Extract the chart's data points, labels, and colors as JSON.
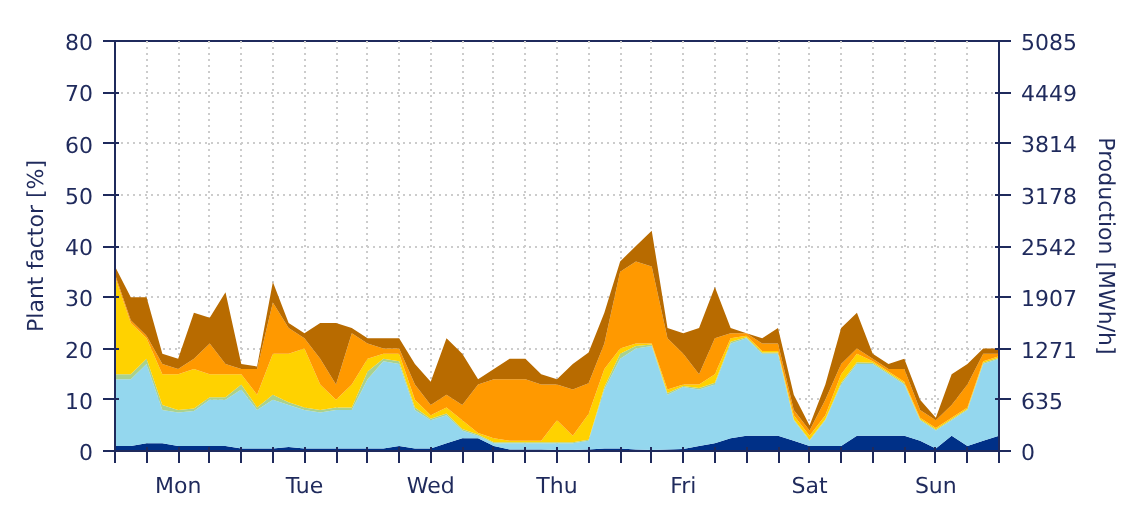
{
  "chart_data": {
    "type": "area",
    "stacked": true,
    "ylabel": "Plant factor [%]",
    "y2label": "Production [MWh/h]",
    "categories": [
      null,
      null,
      null,
      null,
      "Mon",
      null,
      null,
      null,
      null,
      null,
      null,
      null,
      "Tue",
      null,
      null,
      null,
      null,
      null,
      null,
      null,
      "Wed",
      null,
      null,
      null,
      null,
      null,
      null,
      null,
      "Thu",
      null,
      null,
      null,
      null,
      null,
      null,
      null,
      "Fri",
      null,
      null,
      null,
      null,
      null,
      null,
      null,
      "Sat",
      null,
      null,
      null,
      null,
      null,
      null,
      null,
      "Sun",
      null,
      null,
      null,
      null
    ],
    "ylim": [
      0,
      80
    ],
    "yticks": [
      0,
      10,
      20,
      30,
      40,
      50,
      60,
      70,
      80
    ],
    "y2lim": [
      0,
      5085
    ],
    "y2ticks": [
      0,
      635,
      1271,
      1907,
      2542,
      3178,
      3814,
      4449,
      5085
    ],
    "grid": true,
    "series": [
      {
        "color": "#003087",
        "values": [
          1,
          1,
          1.5,
          1.5,
          1,
          1,
          1,
          1,
          0.5,
          0.5,
          0.5,
          0.8,
          0.5,
          0.5,
          0.5,
          0.5,
          0.5,
          0.5,
          1,
          0.5,
          0.5,
          1.5,
          2.5,
          2.5,
          1,
          0.3,
          0.3,
          0.3,
          0.2,
          0.2,
          0.3,
          0.5,
          0.5,
          0.3,
          0.2,
          0.3,
          0.4,
          1,
          1.5,
          2.5,
          3,
          3,
          3,
          2,
          1,
          1,
          1,
          3,
          3,
          3,
          3,
          2,
          0.5,
          3,
          1,
          2,
          3
        ]
      },
      {
        "color": "#94d7ee",
        "values": [
          13,
          13,
          15.5,
          6.5,
          6.5,
          6.8,
          9,
          9,
          11.5,
          7.5,
          9.5,
          8.2,
          7.5,
          7,
          7.5,
          7.5,
          13.5,
          17,
          16,
          7.5,
          5.5,
          5.5,
          1.5,
          0.5,
          0.5,
          1.2,
          1.2,
          1.2,
          1.3,
          1.3,
          1.7,
          11.5,
          17.5,
          19.7,
          20.3,
          10.7,
          12.1,
          11,
          11.5,
          18.5,
          19,
          16,
          16,
          4,
          1,
          5,
          12,
          14,
          14,
          12,
          10,
          4,
          3.5,
          3,
          7,
          15,
          15
        ]
      },
      {
        "color": "#a9d18e",
        "values": [
          1,
          1,
          1,
          1,
          0.5,
          0.5,
          0.5,
          0.5,
          1,
          0.5,
          1,
          0.5,
          0.5,
          0.5,
          0.5,
          0.5,
          1.5,
          0.5,
          0.5,
          0.5,
          0.3,
          0.3,
          0.3,
          0.2,
          0.2,
          0.2,
          0.2,
          0.2,
          0.2,
          0.2,
          0.2,
          0.5,
          1,
          0.5,
          0.3,
          0.3,
          0.2,
          0.3,
          0.3,
          0.3,
          0.2,
          0.2,
          0.2,
          0.2,
          0.2,
          0.2,
          0.3,
          0.3,
          0.2,
          0.2,
          0.2,
          0.2,
          0.2,
          0.2,
          0.2,
          0.2,
          0.2
        ]
      },
      {
        "color": "#ffd200",
        "values": [
          19,
          10,
          4,
          6,
          7,
          7.7,
          4.5,
          4.5,
          2,
          2.5,
          8,
          9.5,
          11.5,
          5,
          1.5,
          4.5,
          2.5,
          1,
          1.5,
          1.5,
          0.7,
          1.2,
          1.7,
          0.3,
          0.8,
          0.3,
          0.3,
          0.3,
          4.3,
          1.3,
          5,
          3.5,
          1,
          0.5,
          0.2,
          0.7,
          0.3,
          0.7,
          1.7,
          0.7,
          0.3,
          0.3,
          0.3,
          0.8,
          0.8,
          0.8,
          1.7,
          1.7,
          0.3,
          0.3,
          0.3,
          0.3,
          0.3,
          0.3,
          0.3,
          0.3,
          0.3
        ]
      },
      {
        "color": "#ff9900",
        "values": [
          0.5,
          0.5,
          0.5,
          2,
          1,
          2,
          6,
          2,
          1,
          5,
          10,
          5,
          2,
          5,
          3,
          10,
          3,
          1,
          1,
          3,
          2,
          2.5,
          3,
          9.5,
          11.5,
          12,
          12,
          11,
          7,
          9,
          6,
          5,
          15,
          16,
          15,
          10,
          6,
          2,
          7,
          1,
          0.5,
          1.5,
          1.5,
          1,
          1,
          3,
          2,
          1,
          0.5,
          0.5,
          2.5,
          1.5,
          1.5,
          2.5,
          4.5,
          1.5,
          0.5
        ]
      },
      {
        "color": "#b86b00",
        "values": [
          1.5,
          4.5,
          7.5,
          2,
          2,
          9,
          5,
          14,
          1,
          0.5,
          4,
          1,
          1,
          7,
          12,
          1,
          1,
          2,
          2,
          4,
          4.5,
          11,
          10,
          1,
          2,
          4,
          4,
          2,
          1,
          5,
          6,
          6,
          2,
          3,
          7,
          2,
          4,
          9,
          10,
          1,
          0,
          1,
          3,
          3,
          1,
          3,
          7,
          7,
          1,
          1,
          2,
          2,
          0.5,
          6,
          4,
          1,
          1
        ]
      }
    ]
  }
}
